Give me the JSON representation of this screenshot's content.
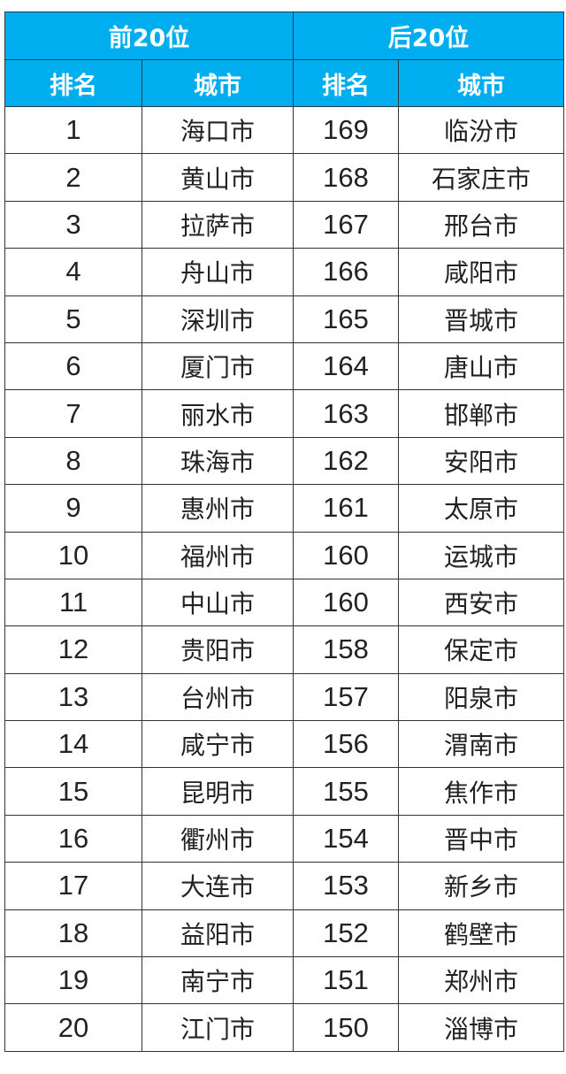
{
  "header": {
    "group_top": "前20位",
    "group_bottom": "后20位",
    "col_rank": "排名",
    "col_city": "城市"
  },
  "colors": {
    "header_bg": "#00aeef",
    "header_text": "#ffffff"
  },
  "rows": [
    {
      "top_rank": "1",
      "top_city": "海口市",
      "bottom_rank": "169",
      "bottom_city": "临汾市"
    },
    {
      "top_rank": "2",
      "top_city": "黄山市",
      "bottom_rank": "168",
      "bottom_city": "石家庄市"
    },
    {
      "top_rank": "3",
      "top_city": "拉萨市",
      "bottom_rank": "167",
      "bottom_city": "邢台市"
    },
    {
      "top_rank": "4",
      "top_city": "舟山市",
      "bottom_rank": "166",
      "bottom_city": "咸阳市"
    },
    {
      "top_rank": "5",
      "top_city": "深圳市",
      "bottom_rank": "165",
      "bottom_city": "晋城市"
    },
    {
      "top_rank": "6",
      "top_city": "厦门市",
      "bottom_rank": "164",
      "bottom_city": "唐山市"
    },
    {
      "top_rank": "7",
      "top_city": "丽水市",
      "bottom_rank": "163",
      "bottom_city": "邯郸市"
    },
    {
      "top_rank": "8",
      "top_city": "珠海市",
      "bottom_rank": "162",
      "bottom_city": "安阳市"
    },
    {
      "top_rank": "9",
      "top_city": "惠州市",
      "bottom_rank": "161",
      "bottom_city": "太原市"
    },
    {
      "top_rank": "10",
      "top_city": "福州市",
      "bottom_rank": "160",
      "bottom_city": "运城市"
    },
    {
      "top_rank": "11",
      "top_city": "中山市",
      "bottom_rank": "160",
      "bottom_city": "西安市"
    },
    {
      "top_rank": "12",
      "top_city": "贵阳市",
      "bottom_rank": "158",
      "bottom_city": "保定市"
    },
    {
      "top_rank": "13",
      "top_city": "台州市",
      "bottom_rank": "157",
      "bottom_city": "阳泉市"
    },
    {
      "top_rank": "14",
      "top_city": "咸宁市",
      "bottom_rank": "156",
      "bottom_city": "渭南市"
    },
    {
      "top_rank": "15",
      "top_city": "昆明市",
      "bottom_rank": "155",
      "bottom_city": "焦作市"
    },
    {
      "top_rank": "16",
      "top_city": "衢州市",
      "bottom_rank": "154",
      "bottom_city": "晋中市"
    },
    {
      "top_rank": "17",
      "top_city": "大连市",
      "bottom_rank": "153",
      "bottom_city": "新乡市"
    },
    {
      "top_rank": "18",
      "top_city": "益阳市",
      "bottom_rank": "152",
      "bottom_city": "鹤壁市"
    },
    {
      "top_rank": "19",
      "top_city": "南宁市",
      "bottom_rank": "151",
      "bottom_city": "郑州市"
    },
    {
      "top_rank": "20",
      "top_city": "江门市",
      "bottom_rank": "150",
      "bottom_city": "淄博市"
    }
  ]
}
